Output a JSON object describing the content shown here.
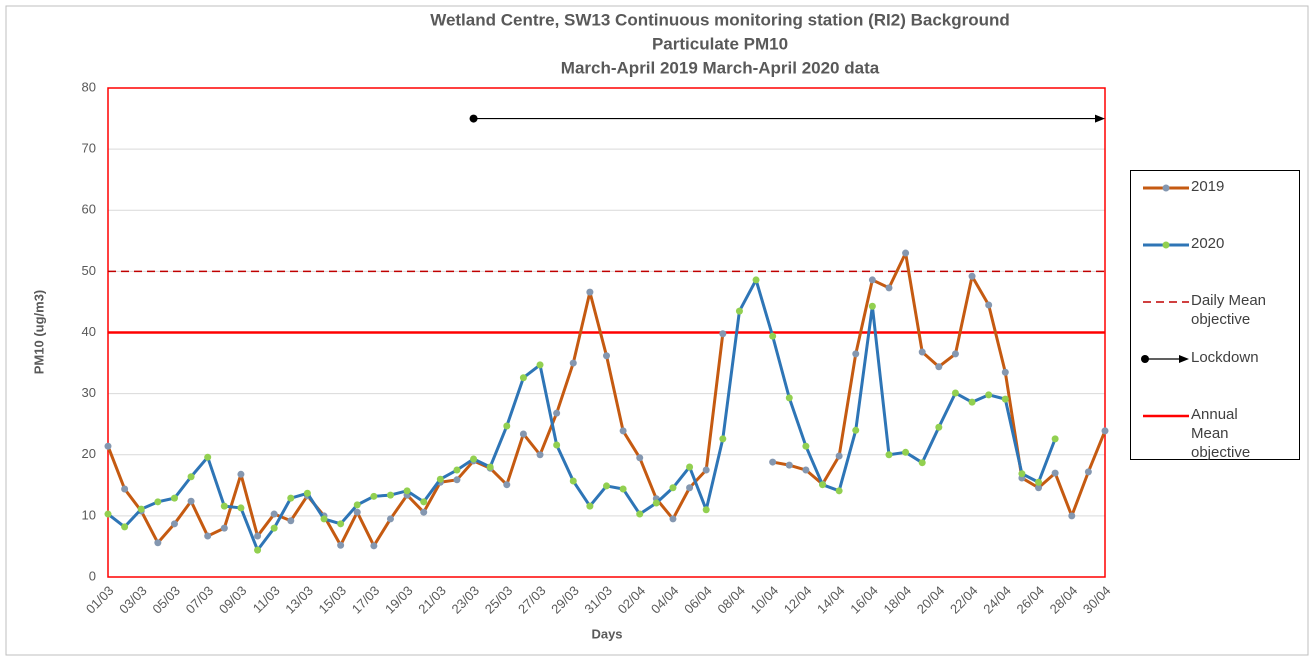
{
  "chart_data": {
    "type": "line",
    "title": [
      "Wetland Centre, SW13 Continuous monitoring station (RI2) Background",
      "Particulate PM10",
      "March-April 2019 March-April 2020 data"
    ],
    "x_label": "Days",
    "y_label": "PM10 (ug/m3)",
    "categories": [
      "01/03",
      null,
      "03/03",
      null,
      "05/03",
      null,
      "07/03",
      null,
      "09/03",
      null,
      "11/03",
      null,
      "13/03",
      null,
      "15/03",
      null,
      "17/03",
      null,
      "19/03",
      null,
      "21/03",
      null,
      "23/03",
      null,
      "25/03",
      null,
      "27/03",
      null,
      "29/03",
      null,
      "31/03",
      null,
      "02/04",
      null,
      "04/04",
      null,
      "06/04",
      null,
      "08/04",
      null,
      "10/04",
      null,
      "12/04",
      null,
      "14/04",
      null,
      "16/04",
      null,
      "18/04",
      null,
      "20/04",
      null,
      "22/04",
      null,
      "24/04",
      null,
      "26/04",
      null,
      "28/04",
      null,
      "30/04"
    ],
    "series": [
      {
        "name": "2019",
        "color": "#c55a11",
        "marker_color": "#8497b0",
        "values": [
          21.4,
          14.4,
          10.8,
          5.6,
          8.7,
          12.4,
          6.7,
          8.0,
          16.8,
          6.7,
          10.3,
          9.2,
          13.3,
          10.0,
          5.2,
          10.6,
          5.1,
          9.5,
          13.4,
          10.6,
          15.5,
          15.9,
          19.0,
          17.8,
          15.1,
          23.4,
          20.0,
          26.8,
          35.0,
          46.6,
          36.2,
          23.9,
          19.5,
          12.8,
          9.5,
          14.6,
          17.5,
          39.8,
          null,
          null,
          18.8,
          18.3,
          17.5,
          15.2,
          19.8,
          36.5,
          48.6,
          47.3,
          53.0,
          36.8,
          34.4,
          36.5,
          49.2,
          44.5,
          33.5,
          16.2,
          14.6,
          17.0,
          10.0,
          17.2,
          23.9
        ]
      },
      {
        "name": "2020",
        "color": "#2e75b6",
        "marker_color": "#92d050",
        "values": [
          10.3,
          8.2,
          11.1,
          12.3,
          12.9,
          16.4,
          19.6,
          11.6,
          11.3,
          4.4,
          8.0,
          12.9,
          13.7,
          9.5,
          8.7,
          11.8,
          13.2,
          13.4,
          14.1,
          12.3,
          16.0,
          17.5,
          19.3,
          18.0,
          24.7,
          32.6,
          34.7,
          21.6,
          15.7,
          11.6,
          14.9,
          14.4,
          10.3,
          12.1,
          14.6,
          18.0,
          11.0,
          22.6,
          43.5,
          48.6,
          39.4,
          29.3,
          21.4,
          15.1,
          14.1,
          24.0,
          44.3,
          20.0,
          20.4,
          18.7,
          24.5,
          30.1,
          28.6,
          29.8,
          29.1,
          16.9,
          15.5,
          22.6,
          null,
          null,
          null
        ]
      }
    ],
    "reference_lines": [
      {
        "name": "Daily Mean objective",
        "value": 50,
        "color": "#c00000",
        "dashed": true
      },
      {
        "name": "Annual Mean objective",
        "value": 40,
        "color": "#ff0000",
        "dashed": false
      }
    ],
    "lockdown": {
      "name": "Lockdown",
      "y": 75,
      "start": "23/03",
      "end": "30/04",
      "color": "#000000"
    },
    "ylim": [
      0,
      80
    ],
    "yticks": [
      0,
      10,
      20,
      30,
      40,
      50,
      60,
      70,
      80
    ],
    "grid": true,
    "frame_color": "#ff0000"
  }
}
